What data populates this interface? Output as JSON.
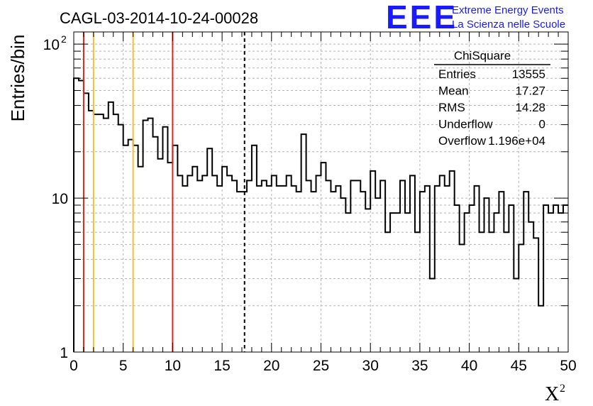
{
  "chart_data": {
    "type": "histogram",
    "title": "CAGL-03-2014-10-24-00028",
    "xlabel": "X",
    "xlabel_superscript": "2",
    "ylabel": "Entries/bin",
    "xlim": [
      0,
      50
    ],
    "ylim": [
      1,
      120
    ],
    "ylog": true,
    "grid": true,
    "x_ticks": [
      "0",
      "5",
      "10",
      "15",
      "20",
      "25",
      "30",
      "35",
      "40",
      "45",
      "50"
    ],
    "y_ticks": [
      {
        "value": 1,
        "label": "1"
      },
      {
        "value": 10,
        "label": "10"
      },
      {
        "value": 100,
        "label": "10",
        "exp": "2"
      }
    ],
    "bin_width": 0.5,
    "x_start": 0,
    "values": [
      60,
      58,
      48,
      37,
      35,
      35,
      33,
      42,
      35,
      30,
      22,
      24,
      22,
      16,
      32,
      33,
      25,
      18,
      29,
      17,
      22,
      14,
      12,
      14,
      16,
      13,
      14,
      21,
      14,
      12,
      16,
      14,
      13,
      11,
      11,
      13,
      22,
      12,
      13,
      12,
      14,
      12,
      12,
      14,
      12,
      11,
      26,
      13,
      11,
      14,
      17,
      13,
      11,
      12,
      10,
      8,
      13,
      13,
      11,
      8.5,
      15,
      10,
      13,
      6,
      8,
      8,
      13,
      8,
      14,
      6,
      11,
      12,
      3,
      12,
      14,
      12,
      15,
      9,
      5,
      8,
      9,
      12,
      6,
      10,
      6,
      8,
      11,
      6,
      9,
      3,
      5,
      11,
      7,
      5.5,
      2,
      9,
      8,
      9,
      8,
      9
    ],
    "vertical_lines": [
      {
        "x": 1,
        "color": "#e0241f",
        "style": "solid"
      },
      {
        "x": 2,
        "color": "#f2c12e",
        "style": "solid"
      },
      {
        "x": 6,
        "color": "#f2c12e",
        "style": "solid"
      },
      {
        "x": 10,
        "color": "#e0241f",
        "style": "solid"
      },
      {
        "x": 17.27,
        "color": "#000000",
        "style": "dashed"
      }
    ],
    "stats": {
      "title": "ChiSquare",
      "rows": [
        {
          "label": "Entries",
          "value": "13555"
        },
        {
          "label": "Mean",
          "value": "17.27"
        },
        {
          "label": "RMS",
          "value": "14.28"
        },
        {
          "label": "Underflow",
          "value": "0"
        },
        {
          "label": "Overflow",
          "value": "1.196e+04"
        }
      ]
    }
  },
  "logo": {
    "mark": "EEE",
    "line1": "Extreme Energy Events",
    "line2": "La Scienza nelle Scuole",
    "color": "#1a1aff"
  }
}
